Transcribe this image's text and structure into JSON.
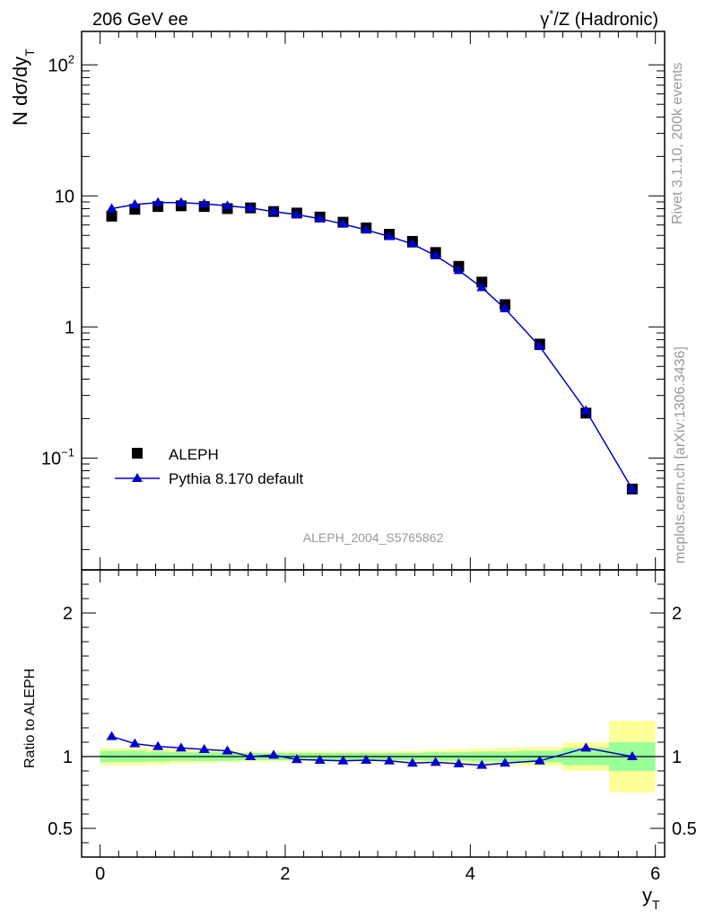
{
  "header": {
    "left": "206 GeV ee",
    "right_prefix": "γ",
    "right_sup": "*",
    "right_rest": "/Z (Hadronic)"
  },
  "watermark": {
    "analysis": "ALEPH_2004_S5765862",
    "rivet": "Rivet 3.1.10,  200k events",
    "mcplots": "mcplots.cern.ch [arXiv:1306.3436]"
  },
  "colors": {
    "data": "#000000",
    "mc": "#0000cc",
    "band_inner": "#99ff99",
    "band_outer": "#ffff99"
  },
  "chart_data": [
    {
      "type": "scatter",
      "panel": "main",
      "ylabel_main": "N dσ/dy",
      "ylabel_sub": "T",
      "yscale": "log",
      "ylim": [
        0.014,
        180
      ],
      "xlim": [
        -0.2,
        6.1
      ],
      "ytick_labels": [
        {
          "base": "10",
          "exp": "2"
        },
        {
          "base": "10",
          "exp": ""
        },
        {
          "base": "1",
          "exp": ""
        },
        {
          "base": "10",
          "exp": "−1"
        }
      ],
      "legend_position": "bottom-left",
      "series": [
        {
          "name": "ALEPH",
          "marker": "square",
          "x": [
            0.125,
            0.375,
            0.625,
            0.875,
            1.125,
            1.375,
            1.625,
            1.875,
            2.125,
            2.375,
            2.625,
            2.875,
            3.125,
            3.375,
            3.625,
            3.875,
            4.125,
            4.375,
            4.75,
            5.25,
            5.75
          ],
          "y": [
            7.0,
            7.9,
            8.3,
            8.4,
            8.3,
            8.0,
            8.1,
            7.6,
            7.4,
            6.9,
            6.3,
            5.7,
            5.1,
            4.5,
            3.7,
            2.9,
            2.2,
            1.48,
            0.74,
            0.22,
            0.058
          ]
        },
        {
          "name": "Pythia 8.170 default",
          "marker": "triangle",
          "x": [
            0.125,
            0.375,
            0.625,
            0.875,
            1.125,
            1.375,
            1.625,
            1.875,
            2.125,
            2.375,
            2.625,
            2.875,
            3.125,
            3.375,
            3.625,
            3.875,
            4.125,
            4.375,
            4.75,
            5.25,
            5.75
          ],
          "y": [
            8.0,
            8.6,
            8.9,
            8.9,
            8.7,
            8.4,
            8.1,
            7.6,
            7.2,
            6.7,
            6.1,
            5.5,
            4.9,
            4.3,
            3.5,
            2.7,
            2.0,
            1.38,
            0.71,
            0.23,
            0.058
          ]
        }
      ]
    },
    {
      "type": "line",
      "panel": "ratio",
      "ylabel": "Ratio to ALEPH",
      "xlabel_main": "y",
      "xlabel_sub": "T",
      "ylim": [
        0.3,
        2.3
      ],
      "xlim": [
        -0.2,
        6.1
      ],
      "xticks": [
        0,
        2,
        4,
        6
      ],
      "xtick_labels": [
        "0",
        "2",
        "4",
        "6"
      ],
      "yticks": [
        0.5,
        1,
        2
      ],
      "ytick_labels": [
        "0.5",
        "1",
        "2"
      ],
      "bands": {
        "edges": [
          0,
          0.25,
          0.5,
          0.75,
          1.0,
          1.25,
          1.5,
          1.75,
          2.0,
          2.25,
          2.5,
          2.75,
          3.0,
          3.25,
          3.5,
          3.75,
          4.0,
          4.25,
          4.5,
          5.0,
          5.5,
          6.0
        ],
        "inner_half": [
          0.04,
          0.04,
          0.035,
          0.03,
          0.03,
          0.03,
          0.025,
          0.025,
          0.025,
          0.025,
          0.025,
          0.025,
          0.025,
          0.025,
          0.03,
          0.03,
          0.035,
          0.035,
          0.04,
          0.06,
          0.1
        ],
        "outer_half": [
          0.06,
          0.06,
          0.055,
          0.05,
          0.045,
          0.04,
          0.035,
          0.035,
          0.035,
          0.035,
          0.035,
          0.035,
          0.035,
          0.04,
          0.045,
          0.05,
          0.055,
          0.06,
          0.065,
          0.1,
          0.25
        ]
      },
      "series": [
        {
          "name": "Pythia 8.170 default",
          "x": [
            0.125,
            0.375,
            0.625,
            0.875,
            1.125,
            1.375,
            1.625,
            1.875,
            2.125,
            2.375,
            2.625,
            2.875,
            3.125,
            3.375,
            3.625,
            3.875,
            4.125,
            4.375,
            4.75,
            5.25,
            5.75
          ],
          "y": [
            1.14,
            1.09,
            1.07,
            1.06,
            1.05,
            1.04,
            1.0,
            1.01,
            0.98,
            0.975,
            0.97,
            0.975,
            0.97,
            0.955,
            0.96,
            0.95,
            0.94,
            0.955,
            0.97,
            1.06,
            1.0
          ]
        }
      ]
    }
  ]
}
